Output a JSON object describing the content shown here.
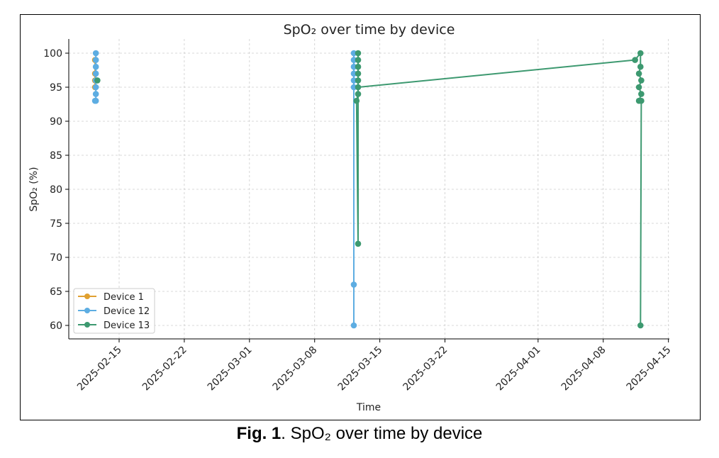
{
  "caption": {
    "label": "Fig. 1",
    "text": ". SpO₂ over time by device"
  },
  "chart_data": {
    "type": "line",
    "title": "SpO₂ over time by device",
    "xlabel": "Time",
    "ylabel": "SpO₂ (%)",
    "ylim": [
      58,
      102
    ],
    "yticks": [
      60,
      65,
      70,
      75,
      80,
      85,
      90,
      95,
      100
    ],
    "xticks": [
      "2025-02-15",
      "2025-02-22",
      "2025-03-01",
      "2025-03-08",
      "2025-03-15",
      "2025-03-22",
      "2025-04-01",
      "2025-04-08",
      "2025-04-15"
    ],
    "xlim": [
      "2025-02-09T12:00",
      "2025-04-15T00:00"
    ],
    "grid": true,
    "legend_position": "lower-left",
    "series": [
      {
        "name": "Device 1",
        "color": "#e0a030",
        "segments": [
          [
            [
              "2025-02-12T10:00",
              99
            ],
            [
              "2025-02-12T10:00",
              97
            ],
            [
              "2025-02-12T10:00",
              96
            ],
            [
              "2025-02-12T10:00",
              95
            ]
          ]
        ]
      },
      {
        "name": "Device 12",
        "color": "#5dade2",
        "segments": [
          [
            [
              "2025-02-12T12:00",
              100
            ],
            [
              "2025-02-12T12:00",
              99
            ],
            [
              "2025-02-12T12:00",
              98
            ],
            [
              "2025-02-12T12:00",
              97
            ],
            [
              "2025-02-12T12:00",
              96
            ],
            [
              "2025-02-12T12:00",
              95
            ],
            [
              "2025-02-12T12:00",
              94
            ],
            [
              "2025-02-12T12:00",
              93
            ],
            [
              "2025-02-12T10:00",
              93
            ]
          ],
          [
            [
              "2025-03-12T05:00",
              100
            ],
            [
              "2025-03-12T05:00",
              99
            ],
            [
              "2025-03-12T05:00",
              98
            ],
            [
              "2025-03-12T05:00",
              97
            ],
            [
              "2025-03-12T05:00",
              96
            ],
            [
              "2025-03-12T05:00",
              95
            ],
            [
              "2025-03-12T05:00",
              66
            ],
            [
              "2025-03-12T05:00",
              60
            ]
          ]
        ]
      },
      {
        "name": "Device 13",
        "color": "#3d9970",
        "segments": [
          [
            [
              "2025-02-12T16:00",
              96
            ]
          ],
          [
            [
              "2025-03-12T16:00",
              100
            ],
            [
              "2025-03-12T16:00",
              99
            ],
            [
              "2025-03-12T16:00",
              98
            ],
            [
              "2025-03-12T16:00",
              97
            ],
            [
              "2025-03-12T16:00",
              96
            ],
            [
              "2025-03-12T16:00",
              94
            ],
            [
              "2025-03-12T12:00",
              93
            ],
            [
              "2025-03-12T16:00",
              72
            ],
            [
              "2025-03-12T16:00",
              95
            ],
            [
              "2025-04-11T10:00",
              99
            ],
            [
              "2025-04-12T00:00",
              100
            ],
            [
              "2025-04-12T00:00",
              98
            ],
            [
              "2025-04-11T20:00",
              97
            ],
            [
              "2025-04-12T02:00",
              96
            ],
            [
              "2025-04-11T20:00",
              95
            ],
            [
              "2025-04-12T02:00",
              94
            ],
            [
              "2025-04-11T20:00",
              93
            ],
            [
              "2025-04-12T02:00",
              93
            ],
            [
              "2025-04-12T00:00",
              60
            ]
          ]
        ]
      }
    ]
  }
}
